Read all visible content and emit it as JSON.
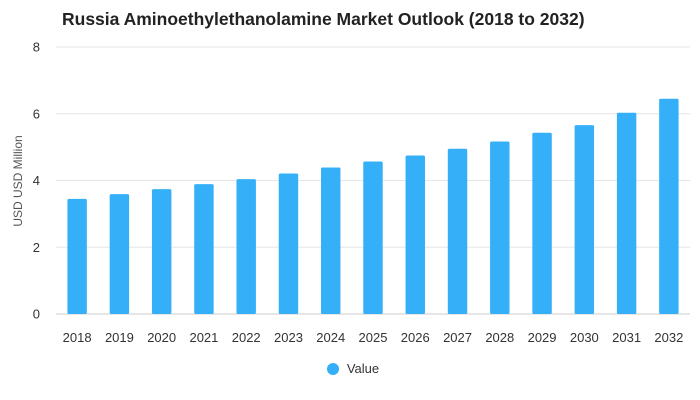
{
  "chart_data": {
    "type": "bar",
    "title": "Russia Aminoethylethanolamine Market Outlook (2018 to 2032)",
    "xlabel": "",
    "ylabel": "USD USD Million",
    "categories": [
      "2018",
      "2019",
      "2020",
      "2021",
      "2022",
      "2023",
      "2024",
      "2025",
      "2026",
      "2027",
      "2028",
      "2029",
      "2030",
      "2031",
      "2032"
    ],
    "series": [
      {
        "name": "Value",
        "values": [
          3.45,
          3.59,
          3.74,
          3.89,
          4.04,
          4.21,
          4.39,
          4.57,
          4.75,
          4.95,
          5.17,
          5.43,
          5.66,
          6.03,
          6.45
        ]
      }
    ],
    "ylim": [
      0,
      8
    ],
    "yticks": [
      "0",
      "2",
      "4",
      "6",
      "8"
    ],
    "grid": true,
    "legend_position": "bottom-center",
    "colors": {
      "bar": "#35B0F8",
      "grid": "#E6E6E6",
      "axis": "#CCCCCC"
    }
  }
}
